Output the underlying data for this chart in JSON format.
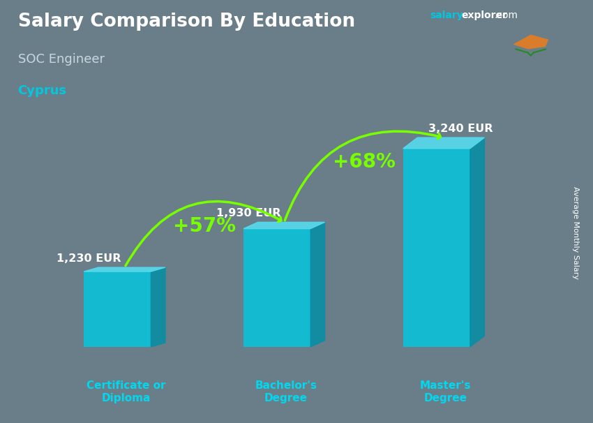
{
  "title": "Salary Comparison By Education",
  "subtitle": "SOC Engineer",
  "country": "Cyprus",
  "site_salary": "salary",
  "site_explorer": "explorer",
  "site_com": ".com",
  "ylabel": "Average Monthly Salary",
  "categories": [
    "Certificate or\nDiploma",
    "Bachelor's\nDegree",
    "Master's\nDegree"
  ],
  "values": [
    1230,
    1930,
    3240
  ],
  "labels": [
    "1,230 EUR",
    "1,930 EUR",
    "3,240 EUR"
  ],
  "pct_labels": [
    "+57%",
    "+68%"
  ],
  "bar_color_face": "#00c8e0",
  "bar_color_side": "#0090a8",
  "bar_color_top": "#55ddf0",
  "pct_color": "#77ff00",
  "arrow_color": "#77ff00",
  "bg_color": "#6a7e8a",
  "figsize": [
    8.5,
    6.06
  ],
  "dpi": 100
}
